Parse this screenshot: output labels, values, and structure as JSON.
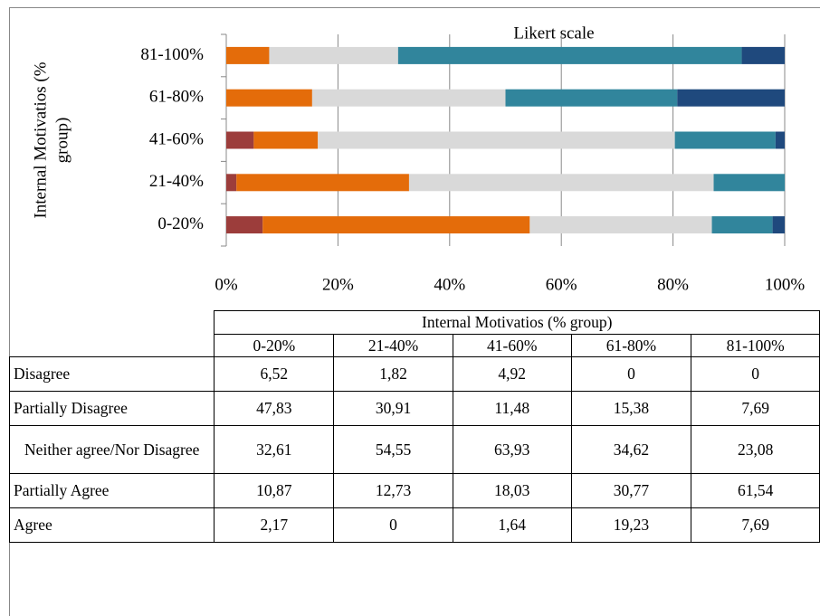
{
  "chart_data": {
    "type": "bar",
    "orientation": "horizontal",
    "stacked": true,
    "title": "Likert scale",
    "y_label": "Internal Motivatios (% group)",
    "categories": [
      "0-20%",
      "21-40%",
      "41-60%",
      "61-80%",
      "81-100%"
    ],
    "series": [
      {
        "name": "Disagree",
        "color": "#9c3d3b",
        "values": [
          6.52,
          1.82,
          4.92,
          0,
          0
        ],
        "value_labels": [
          "6,52",
          "1,82",
          "4,92",
          "0",
          "0"
        ]
      },
      {
        "name": "Partially Disagree",
        "color": "#e46c0a",
        "values": [
          47.83,
          30.91,
          11.48,
          15.38,
          7.69
        ],
        "value_labels": [
          "47,83",
          "30,91",
          "11,48",
          "15,38",
          "7,69"
        ]
      },
      {
        "name": "Neither agree/Nor Disagree",
        "color": "#d9d9d9",
        "values": [
          32.61,
          54.55,
          63.93,
          34.62,
          23.08
        ],
        "value_labels": [
          "32,61",
          "54,55",
          "63,93",
          "34,62",
          "23,08"
        ]
      },
      {
        "name": "Partially Agree",
        "color": "#31859c",
        "values": [
          10.87,
          12.73,
          18.03,
          30.77,
          61.54
        ],
        "value_labels": [
          "10,87",
          "12,73",
          "18,03",
          "30,77",
          "61,54"
        ]
      },
      {
        "name": "Agree",
        "color": "#1f497d",
        "values": [
          2.17,
          0,
          1.64,
          19.23,
          7.69
        ],
        "value_labels": [
          "2,17",
          "0",
          "1,64",
          "19,23",
          "7,69"
        ]
      }
    ],
    "xlim": [
      0,
      100
    ],
    "xticks": [
      {
        "value": 0,
        "label": "0%"
      },
      {
        "value": 20,
        "label": "20%"
      },
      {
        "value": 40,
        "label": "40%"
      },
      {
        "value": 60,
        "label": "60%"
      },
      {
        "value": 80,
        "label": "80%"
      },
      {
        "value": 100,
        "label": "100%"
      }
    ],
    "grid": true,
    "table_header": "Internal Motivatios (% group)"
  }
}
